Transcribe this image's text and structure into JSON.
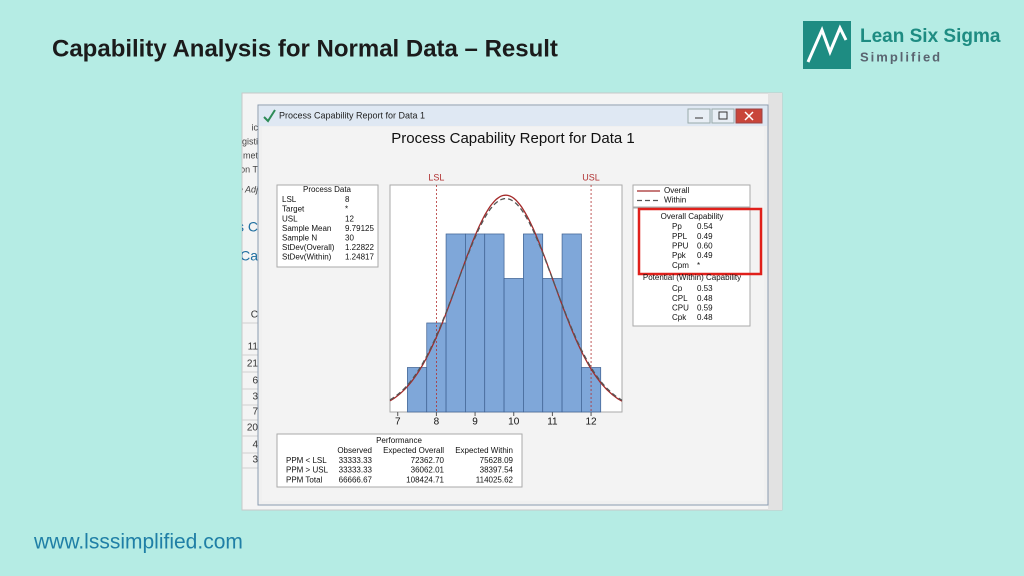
{
  "slide": {
    "title": "Capability Analysis for Normal Data – Result",
    "logo": {
      "name": "Lean Six Sigma",
      "tagline": "Simplified"
    },
    "url": "www.lsssimplified.com"
  },
  "background_window": {
    "fragments": [
      "ic",
      "gisti",
      "met",
      "on T",
      "e Adj",
      "s C",
      "s Ca"
    ],
    "row_labels": [
      "C",
      "11",
      "21",
      "6",
      "3",
      "7",
      "20",
      "4",
      "3"
    ]
  },
  "window": {
    "title": "Process Capability Report for Data 1"
  },
  "report": {
    "title": "Process Capability Report for Data 1",
    "process_data": {
      "title": "Process Data",
      "rows": [
        [
          "LSL",
          "8"
        ],
        [
          "Target",
          "*"
        ],
        [
          "USL",
          "12"
        ],
        [
          "Sample Mean",
          "9.79125"
        ],
        [
          "Sample N",
          "30"
        ],
        [
          "StDev(Overall)",
          "1.22822"
        ],
        [
          "StDev(Within)",
          "1.24817"
        ]
      ]
    },
    "capability": {
      "overall_title": "Overall Capability",
      "overall": [
        [
          "Pp",
          "0.54"
        ],
        [
          "PPL",
          "0.49"
        ],
        [
          "PPU",
          "0.60"
        ],
        [
          "Ppk",
          "0.49"
        ],
        [
          "Cpm",
          "*"
        ]
      ],
      "within_title": "Potential (Within) Capability",
      "within": [
        [
          "Cp",
          "0.53"
        ],
        [
          "CPL",
          "0.48"
        ],
        [
          "CPU",
          "0.59"
        ],
        [
          "Cpk",
          "0.48"
        ]
      ]
    },
    "performance": {
      "title": "Performance",
      "header": [
        "Observed",
        "Expected Overall",
        "Expected Within"
      ],
      "rows": [
        [
          "PPM < LSL",
          "33333.33",
          "72362.70",
          "75628.09"
        ],
        [
          "PPM > USL",
          "33333.33",
          "36062.01",
          "38397.54"
        ],
        [
          "PPM Total",
          "66666.67",
          "108424.71",
          "114025.62"
        ]
      ]
    }
  },
  "chart_data": {
    "type": "histogram",
    "bins": [
      7.25,
      7.75,
      8.25,
      8.75,
      9.25,
      9.75,
      10.25,
      10.75,
      11.25,
      11.75,
      12.25
    ],
    "values": [
      1,
      2,
      4,
      4,
      4,
      3,
      4,
      3,
      4,
      1
    ],
    "color": "#7fa7d9",
    "xlim": [
      6.8,
      12.8
    ],
    "xticks": [
      7,
      8,
      9,
      10,
      11,
      12
    ],
    "ylim": [
      0,
      5.1
    ],
    "spec_limits": [
      {
        "label": "LSL",
        "value": 8
      },
      {
        "label": "USL",
        "value": 12
      }
    ],
    "spec_color": "#b03030",
    "series": [
      {
        "name": "Overall",
        "color": "#a52a2a",
        "dash": false,
        "mean": 9.79125,
        "sd": 1.22822
      },
      {
        "name": "Within",
        "color": "#555555",
        "dash": true,
        "mean": 9.79125,
        "sd": 1.24817
      }
    ]
  }
}
